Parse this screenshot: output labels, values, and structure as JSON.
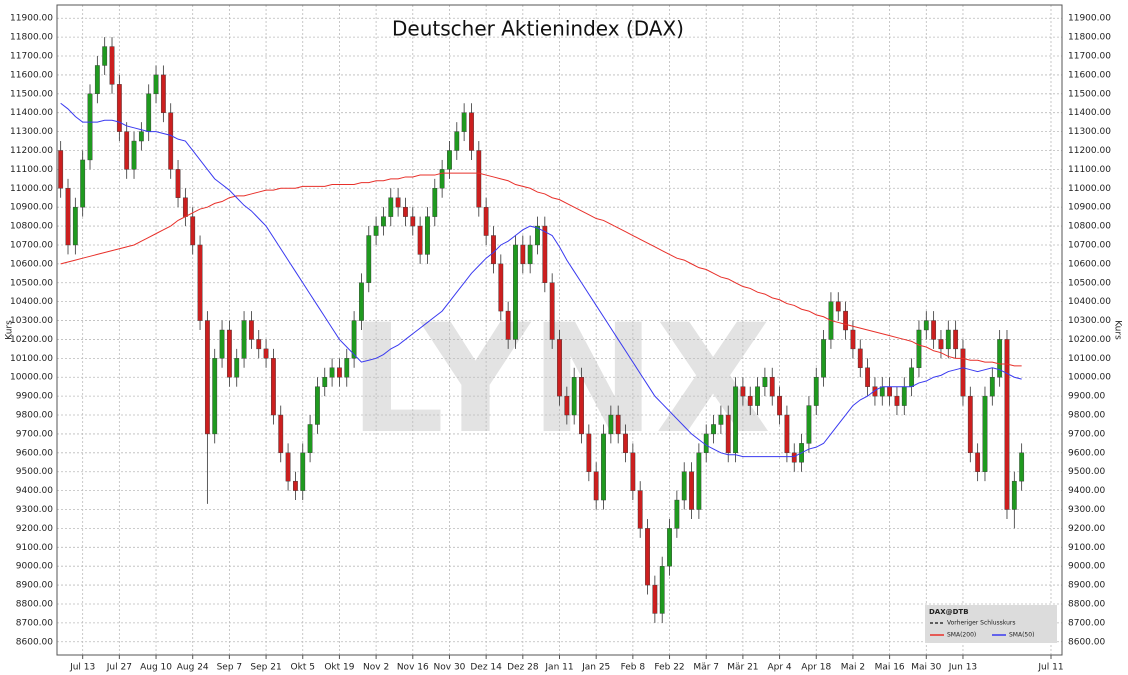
{
  "chart_data": {
    "type": "candlestick",
    "title": "Deutscher Aktienindex (DAX)",
    "y_label": "Kurs",
    "watermark": "LYNX",
    "grid": true,
    "legend": {
      "title": "DAX@DTB",
      "entries": [
        "Vorheriger Schlusskurs"
      ],
      "position": "lower right"
    },
    "ylim": [
      8530,
      11970
    ],
    "yticks": [
      {
        "value": 8600,
        "label": "8600.00"
      },
      {
        "value": 8700,
        "label": "8700.00"
      },
      {
        "value": 8800,
        "label": "8800.00"
      },
      {
        "value": 8900,
        "label": "8900.00"
      },
      {
        "value": 9000,
        "label": "9000.00"
      },
      {
        "value": 9100,
        "label": "9100.00"
      },
      {
        "value": 9200,
        "label": "9200.00"
      },
      {
        "value": 9300,
        "label": "9300.00"
      },
      {
        "value": 9400,
        "label": "9400.00"
      },
      {
        "value": 9500,
        "label": "9500.00"
      },
      {
        "value": 9600,
        "label": "9600.00"
      },
      {
        "value": 9700,
        "label": "9700.00"
      },
      {
        "value": 9800,
        "label": "9800.00"
      },
      {
        "value": 9900,
        "label": "9900.00"
      },
      {
        "value": 10000,
        "label": "10000.00"
      },
      {
        "value": 10100,
        "label": "10100.00"
      },
      {
        "value": 10200,
        "label": "10200.00"
      },
      {
        "value": 10300,
        "label": "10300.00"
      },
      {
        "value": 10400,
        "label": "10400.00"
      },
      {
        "value": 10500,
        "label": "10500.00"
      },
      {
        "value": 10600,
        "label": "10600.00"
      },
      {
        "value": 10700,
        "label": "10700.00"
      },
      {
        "value": 10800,
        "label": "10800.00"
      },
      {
        "value": 10900,
        "label": "10900.00"
      },
      {
        "value": 11000,
        "label": "11000.00"
      },
      {
        "value": 11100,
        "label": "11100.00"
      },
      {
        "value": 11200,
        "label": "11200.00"
      },
      {
        "value": 11300,
        "label": "11300.00"
      },
      {
        "value": 11400,
        "label": "11400.00"
      },
      {
        "value": 11500,
        "label": "11500.00"
      },
      {
        "value": 11600,
        "label": "11600.00"
      },
      {
        "value": 11700,
        "label": "11700.00"
      },
      {
        "value": 11800,
        "label": "11800.00"
      },
      {
        "value": 11900,
        "label": "11900.00"
      }
    ],
    "categories": [
      null,
      null,
      null,
      "Jul 13",
      null,
      null,
      null,
      null,
      "Jul 27",
      null,
      null,
      null,
      null,
      "Aug 10",
      null,
      null,
      null,
      null,
      "Aug 24",
      null,
      null,
      null,
      null,
      "Sep 7",
      null,
      null,
      null,
      null,
      "Sep 21",
      null,
      null,
      null,
      null,
      "Okt 5",
      null,
      null,
      null,
      null,
      "Okt 19",
      null,
      null,
      null,
      null,
      "Nov 2",
      null,
      null,
      null,
      null,
      "Nov 16",
      null,
      null,
      null,
      null,
      "Nov 30",
      null,
      null,
      null,
      null,
      "Dez 14",
      null,
      null,
      null,
      null,
      "Dez 28",
      null,
      null,
      null,
      null,
      "Jan 11",
      null,
      null,
      null,
      null,
      "Jan 25",
      null,
      null,
      null,
      null,
      "Feb 8",
      null,
      null,
      null,
      null,
      "Feb 22",
      null,
      null,
      null,
      null,
      "Mär 7",
      null,
      null,
      null,
      null,
      "Mär 21",
      null,
      null,
      null,
      null,
      "Apr 4",
      null,
      null,
      null,
      null,
      "Apr 18",
      null,
      null,
      null,
      null,
      "Mai 2",
      null,
      null,
      null,
      null,
      "Mai 16",
      null,
      null,
      null,
      null,
      "Mai 30",
      null,
      null,
      null,
      null,
      "Jun 13",
      null,
      null,
      null,
      null,
      null,
      null,
      null,
      null,
      null,
      null,
      null,
      "Jul 11",
      null
    ],
    "series": [
      {
        "name": "DAX@DTB",
        "up_color": "#1f9a1f",
        "down_color": "#cc1f1f",
        "open": [
          11200,
          11000,
          10700,
          10900,
          11150,
          11500,
          11650,
          11750,
          11550,
          11300,
          11100,
          11250,
          11300,
          11500,
          11600,
          11400,
          11100,
          10950,
          10850,
          10700,
          10300,
          9700,
          10100,
          10250,
          10000,
          10100,
          10300,
          10200,
          10150,
          10100,
          9800,
          9600,
          9450,
          9400,
          9600,
          9750,
          9950,
          10000,
          10050,
          10000,
          10100,
          10300,
          10500,
          10750,
          10800,
          10850,
          10950,
          10900,
          10850,
          10800,
          10650,
          10850,
          11000,
          11100,
          11200,
          11300,
          11400,
          11200,
          10900,
          10750,
          10600,
          10350,
          10200,
          10700,
          10600,
          10700,
          10800,
          10500,
          10200,
          9900,
          9800,
          10000,
          9700,
          9500,
          9350,
          9700,
          9800,
          9700,
          9600,
          9400,
          9200,
          8900,
          8750,
          9000,
          9200,
          9350,
          9500,
          9300,
          9600,
          9700,
          9750,
          9800,
          9600,
          9950,
          9900,
          9850,
          9950,
          10000,
          9900,
          9800,
          9600,
          9550,
          9650,
          9850,
          10000,
          10200,
          10400,
          10350,
          10250,
          10150,
          10050,
          9950,
          9900,
          9950,
          9900,
          9850,
          9950,
          10050,
          10250,
          10300,
          10200,
          10150,
          10250,
          10150,
          9900,
          9600,
          9500,
          9900,
          10000,
          10200,
          9300,
          9450,
          null,
          null,
          null,
          null,
          null
        ],
        "high": [
          11250,
          11050,
          10950,
          11200,
          11550,
          11700,
          11800,
          11800,
          11600,
          11350,
          11300,
          11350,
          11550,
          11650,
          11650,
          11450,
          11150,
          11000,
          10900,
          10750,
          10350,
          10150,
          10300,
          10300,
          10150,
          10350,
          10350,
          10250,
          10200,
          10150,
          9850,
          9650,
          9500,
          9650,
          9800,
          10000,
          10050,
          10100,
          10100,
          10150,
          10350,
          10550,
          10800,
          10850,
          10900,
          11000,
          11000,
          10950,
          10900,
          10850,
          10900,
          11050,
          11150,
          11250,
          11350,
          11450,
          11450,
          11250,
          10950,
          10800,
          10650,
          10400,
          10750,
          10750,
          10750,
          10850,
          10850,
          10550,
          10250,
          9950,
          10050,
          10050,
          9750,
          9550,
          9750,
          9850,
          9850,
          9750,
          9650,
          9450,
          9250,
          8950,
          9050,
          9250,
          9400,
          9550,
          9550,
          9650,
          9750,
          9800,
          9850,
          9850,
          10000,
          10000,
          9950,
          10000,
          10050,
          10050,
          9950,
          9850,
          9650,
          9700,
          9900,
          10050,
          10250,
          10450,
          10450,
          10400,
          10300,
          10200,
          10100,
          10000,
          10000,
          10000,
          9950,
          10000,
          10100,
          10300,
          10350,
          10350,
          10250,
          10300,
          10300,
          10200,
          9950,
          9650,
          9950,
          10050,
          10250,
          10250,
          9500,
          9650,
          null,
          null,
          null,
          null,
          null
        ],
        "low": [
          10950,
          10650,
          10650,
          10850,
          11100,
          11450,
          11600,
          11500,
          11250,
          11050,
          11050,
          11200,
          11250,
          11450,
          11350,
          11050,
          10900,
          10800,
          10650,
          10250,
          9330,
          9650,
          10050,
          9950,
          9950,
          10050,
          10150,
          10100,
          10050,
          9750,
          9550,
          9400,
          9350,
          9350,
          9550,
          9700,
          9900,
          9950,
          9950,
          9950,
          10050,
          10250,
          10450,
          10700,
          10750,
          10800,
          10850,
          10800,
          10750,
          10600,
          10600,
          10800,
          10950,
          11050,
          11150,
          11250,
          11150,
          10850,
          10700,
          10550,
          10300,
          10150,
          10150,
          10550,
          10550,
          10650,
          10450,
          10150,
          9850,
          9750,
          9750,
          9650,
          9450,
          9300,
          9300,
          9650,
          9650,
          9550,
          9350,
          9150,
          8850,
          8700,
          8700,
          8950,
          9150,
          9300,
          9250,
          9250,
          9550,
          9650,
          9700,
          9550,
          9550,
          9850,
          9800,
          9800,
          9900,
          9850,
          9750,
          9550,
          9500,
          9500,
          9600,
          9800,
          9950,
          10150,
          10300,
          10200,
          10100,
          10000,
          9900,
          9850,
          9850,
          9850,
          9800,
          9800,
          9900,
          10000,
          10200,
          10150,
          10100,
          10100,
          10100,
          9850,
          9550,
          9450,
          9450,
          9850,
          9950,
          9250,
          9200,
          9400,
          null,
          null,
          null,
          null,
          null
        ],
        "close": [
          11000,
          10700,
          10900,
          11150,
          11500,
          11650,
          11750,
          11550,
          11300,
          11100,
          11250,
          11300,
          11500,
          11600,
          11400,
          11100,
          10950,
          10850,
          10700,
          10300,
          9700,
          10100,
          10250,
          10000,
          10100,
          10300,
          10200,
          10150,
          10100,
          9800,
          9600,
          9450,
          9400,
          9600,
          9750,
          9950,
          10000,
          10050,
          10000,
          10100,
          10300,
          10500,
          10750,
          10800,
          10850,
          10950,
          10900,
          10850,
          10800,
          10650,
          10850,
          11000,
          11100,
          11200,
          11300,
          11400,
          11200,
          10900,
          10750,
          10600,
          10350,
          10200,
          10700,
          10600,
          10700,
          10800,
          10500,
          10200,
          9900,
          9800,
          10000,
          9700,
          9500,
          9350,
          9700,
          9800,
          9700,
          9600,
          9400,
          9200,
          8900,
          8750,
          9000,
          9200,
          9350,
          9500,
          9300,
          9600,
          9700,
          9750,
          9800,
          9600,
          9950,
          9900,
          9850,
          9950,
          10000,
          9900,
          9800,
          9600,
          9550,
          9650,
          9850,
          10000,
          10200,
          10400,
          10350,
          10250,
          10150,
          10050,
          9950,
          9900,
          9950,
          9900,
          9850,
          9950,
          10050,
          10250,
          10300,
          10200,
          10150,
          10250,
          10150,
          9900,
          9600,
          9500,
          9900,
          10000,
          10200,
          9300,
          9450,
          9600,
          null,
          null,
          null,
          null,
          null
        ]
      },
      {
        "name": "SMA(200)",
        "color": "#e8302a",
        "values": [
          10600,
          10610,
          10620,
          10630,
          10640,
          10650,
          10660,
          10670,
          10680,
          10690,
          10700,
          10720,
          10740,
          10760,
          10780,
          10800,
          10830,
          10850,
          10870,
          10890,
          10900,
          10920,
          10930,
          10950,
          10960,
          10960,
          10970,
          10980,
          10990,
          10990,
          11000,
          11000,
          11000,
          11010,
          11010,
          11010,
          11010,
          11020,
          11020,
          11020,
          11020,
          11030,
          11030,
          11040,
          11040,
          11050,
          11050,
          11060,
          11060,
          11070,
          11070,
          11070,
          11080,
          11080,
          11080,
          11080,
          11080,
          11080,
          11070,
          11060,
          11050,
          11040,
          11020,
          11010,
          11000,
          10980,
          10970,
          10950,
          10940,
          10920,
          10900,
          10880,
          10860,
          10840,
          10830,
          10810,
          10790,
          10770,
          10750,
          10730,
          10710,
          10690,
          10670,
          10650,
          10630,
          10620,
          10600,
          10580,
          10570,
          10550,
          10530,
          10520,
          10500,
          10480,
          10470,
          10450,
          10440,
          10420,
          10410,
          10390,
          10380,
          10360,
          10350,
          10330,
          10320,
          10300,
          10290,
          10280,
          10270,
          10260,
          10250,
          10240,
          10230,
          10220,
          10210,
          10200,
          10190,
          10170,
          10160,
          10140,
          10130,
          10110,
          10100,
          10100,
          10090,
          10090,
          10080,
          10080,
          10070,
          10070,
          10060,
          10060,
          null,
          null,
          null,
          null,
          null
        ]
      },
      {
        "name": "SMA(50)",
        "color": "#3a3af0",
        "values": [
          11450,
          11420,
          11380,
          11350,
          11350,
          11350,
          11360,
          11360,
          11350,
          11330,
          11320,
          11310,
          11300,
          11300,
          11290,
          11280,
          11260,
          11250,
          11200,
          11150,
          11100,
          11050,
          11020,
          10990,
          10950,
          10910,
          10880,
          10840,
          10800,
          10740,
          10680,
          10620,
          10560,
          10500,
          10440,
          10380,
          10320,
          10260,
          10200,
          10160,
          10120,
          10080,
          10090,
          10100,
          10120,
          10150,
          10170,
          10200,
          10230,
          10260,
          10290,
          10320,
          10350,
          10400,
          10450,
          10500,
          10550,
          10590,
          10630,
          10660,
          10700,
          10720,
          10750,
          10780,
          10800,
          10790,
          10770,
          10750,
          10690,
          10620,
          10560,
          10500,
          10440,
          10380,
          10320,
          10260,
          10200,
          10140,
          10080,
          10020,
          9960,
          9900,
          9860,
          9820,
          9780,
          9740,
          9700,
          9670,
          9640,
          9620,
          9600,
          9590,
          9590,
          9580,
          9580,
          9580,
          9580,
          9580,
          9580,
          9580,
          9580,
          9600,
          9620,
          9630,
          9650,
          9700,
          9750,
          9800,
          9850,
          9880,
          9900,
          9930,
          9950,
          9950,
          9950,
          9950,
          9950,
          9970,
          9980,
          10000,
          10010,
          10030,
          10040,
          10050,
          10040,
          10030,
          10040,
          10050,
          10040,
          10020,
          10000,
          9990,
          null,
          null,
          null,
          null,
          null
        ]
      }
    ]
  }
}
